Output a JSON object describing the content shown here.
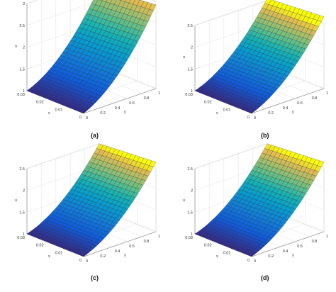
{
  "panels": [
    {
      "caption": "(a)"
    },
    {
      "caption": "(b)"
    },
    {
      "caption": "(c)"
    },
    {
      "caption": "(d)"
    }
  ],
  "chart_data": [
    {
      "type": "surface",
      "zlabel": "u",
      "xlabel": "x",
      "ylabel": "y",
      "x_ticks": [
        "0.03",
        "0.02",
        "0.01",
        "0"
      ],
      "y_ticks": [
        "0",
        "0.2",
        "0.4",
        "0.6",
        "0.8",
        "1"
      ],
      "z_ticks": [
        "1",
        "1.5",
        "2",
        "2.5",
        "3"
      ],
      "xlim": [
        0,
        0.03
      ],
      "ylim": [
        0,
        1
      ],
      "zlim": [
        1,
        3
      ],
      "surface": {
        "x_range": [
          0,
          0.03
        ],
        "y_range": [
          0,
          1
        ],
        "u_at_y0": 1.0,
        "u_at_y1": 2.8,
        "x_effect": 0.12
      },
      "grid": true,
      "colormap": "parula"
    },
    {
      "type": "surface",
      "zlabel": "u",
      "xlabel": "x",
      "ylabel": "y",
      "x_ticks": [
        "0.03",
        "0.02",
        "0.01",
        "0"
      ],
      "y_ticks": [
        "0",
        "0.2",
        "0.4",
        "0.6",
        "0.8",
        "1"
      ],
      "z_ticks": [
        "1",
        "1.5",
        "2",
        "2.5"
      ],
      "xlim": [
        0,
        0.03
      ],
      "ylim": [
        0,
        1
      ],
      "zlim": [
        1,
        2.5
      ],
      "surface": {
        "x_range": [
          0,
          0.03
        ],
        "y_range": [
          0,
          1
        ],
        "u_at_y0": 1.0,
        "u_at_y1": 2.55,
        "x_effect": 0.1
      },
      "grid": true,
      "colormap": "parula"
    },
    {
      "type": "surface",
      "zlabel": "u",
      "xlabel": "x",
      "ylabel": "y",
      "x_ticks": [
        "0.03",
        "0.02",
        "0.01",
        "0"
      ],
      "y_ticks": [
        "0",
        "0.2",
        "0.4",
        "0.6",
        "0.8",
        "1"
      ],
      "z_ticks": [
        "1",
        "1.5",
        "2",
        "2.5"
      ],
      "xlim": [
        0,
        0.03
      ],
      "ylim": [
        0,
        1
      ],
      "zlim": [
        1,
        2.5
      ],
      "surface": {
        "x_range": [
          0,
          0.03
        ],
        "y_range": [
          0,
          1
        ],
        "u_at_y0": 1.0,
        "u_at_y1": 2.5,
        "x_effect": 0.1
      },
      "grid": true,
      "colormap": "parula"
    },
    {
      "type": "surface",
      "zlabel": "u",
      "xlabel": "x",
      "ylabel": "y",
      "x_ticks": [
        "0.03",
        "0.02",
        "0.01",
        "0"
      ],
      "y_ticks": [
        "0",
        "0.2",
        "0.4",
        "0.6",
        "0.8",
        "1"
      ],
      "z_ticks": [
        "1",
        "1.5",
        "2",
        "2.5"
      ],
      "xlim": [
        0,
        0.03
      ],
      "ylim": [
        0,
        1
      ],
      "zlim": [
        1,
        2.5
      ],
      "surface": {
        "x_range": [
          0,
          0.03
        ],
        "y_range": [
          0,
          1
        ],
        "u_at_y0": 1.0,
        "u_at_y1": 2.5,
        "x_effect": 0.1
      },
      "grid": true,
      "colormap": "parula"
    }
  ]
}
